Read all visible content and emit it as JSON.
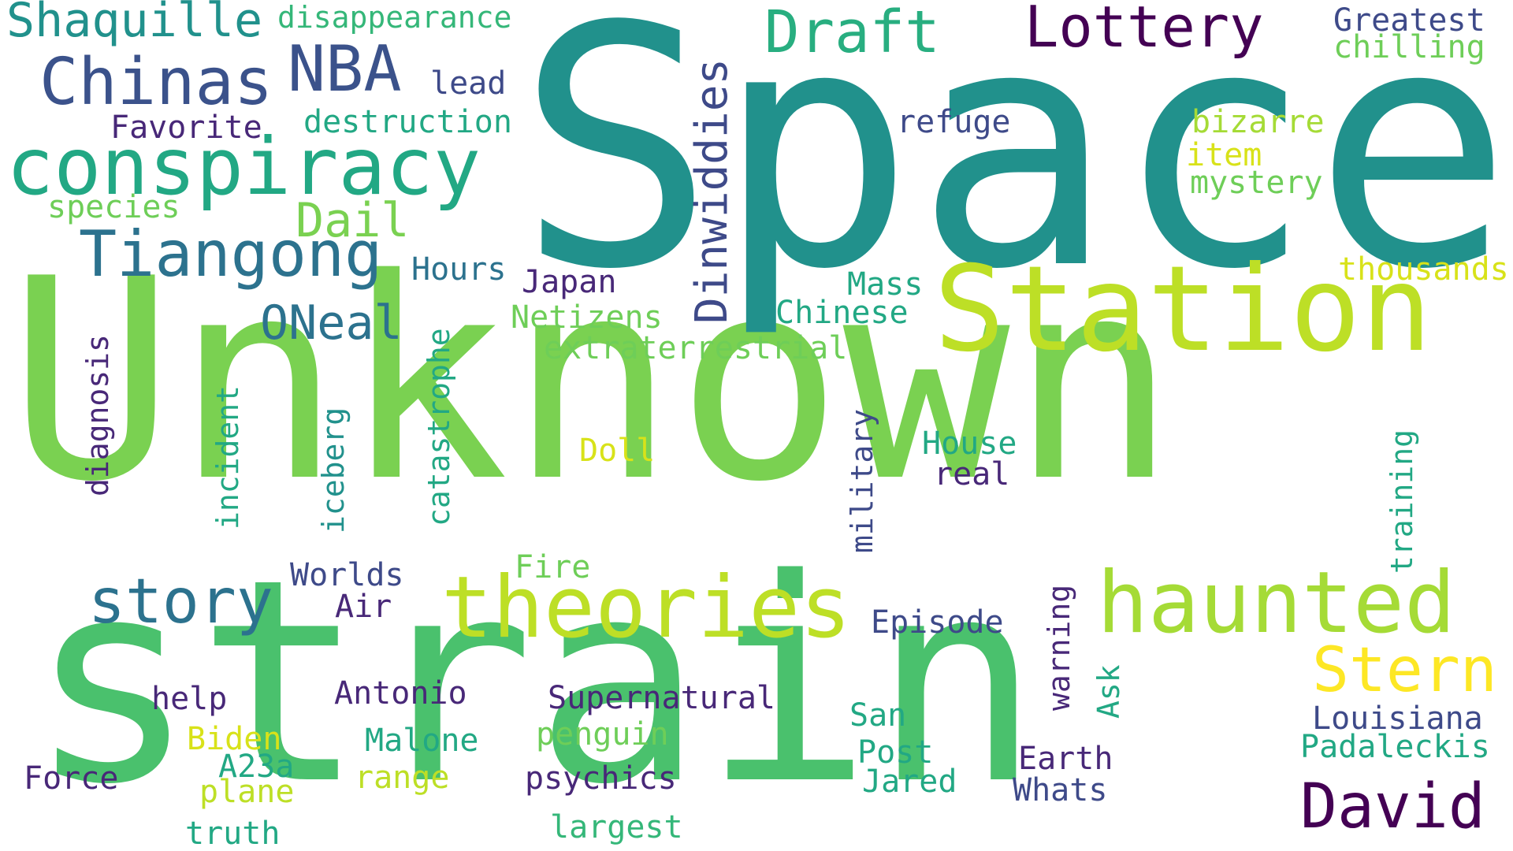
{
  "palette": {
    "c1": "#440154",
    "c2": "#3b528b",
    "c3": "#2c728e",
    "c4": "#21918c",
    "c5": "#28ae80",
    "c6": "#5ec962",
    "c7": "#7ad151",
    "c8": "#addc30",
    "c9": "#fde725",
    "c10": "#c8e020",
    "c11": "#482878",
    "c12": "#3e4a89",
    "c13": "#35b779"
  },
  "words": {
    "unknown": "Unknown",
    "space": "Space",
    "strain": "strain",
    "station": "Station",
    "theories": "theories",
    "haunted": "haunted",
    "conspiracy": "conspiracy",
    "tiangong": "Tiangong",
    "chinas": "Chinas",
    "shaquille": "Shaquille",
    "disappearance": "disappearance",
    "draft": "Draft",
    "lottery": "Lottery",
    "greatest": "Greatest",
    "chilling": "chilling",
    "nba": "NBA",
    "lead": "lead",
    "destruction": "destruction",
    "favorite": "Favorite",
    "refuge": "refuge",
    "bizarre": "bizarre",
    "item": "item",
    "mystery": "mystery",
    "species": "species",
    "dail": "Dail",
    "hours": "Hours",
    "japan": "Japan",
    "mass": "Mass",
    "thousands": "thousands",
    "oneal": "ONeal",
    "netizens": "Netizens",
    "chinese": "Chinese",
    "extraterrestrial": "extraterrestrial",
    "dinwiddies": "Dinwiddies",
    "diagnosis": "diagnosis",
    "incident": "incident",
    "iceberg": "iceberg",
    "catastrophe": "catastrophe",
    "military": "military",
    "house": "House",
    "real": "real",
    "doll": "Doll",
    "training": "training",
    "story": "story",
    "worlds": "Worlds",
    "fire": "Fire",
    "air": "Air",
    "episode": "Episode",
    "warning": "warning",
    "stern": "Stern",
    "help": "help",
    "antonio": "Antonio",
    "supernatural": "Supernatural",
    "ask": "Ask",
    "san": "San",
    "louisiana": "Louisiana",
    "biden": "Biden",
    "malone": "Malone",
    "penguin": "penguin",
    "post": "Post",
    "padaleckis": "Padaleckis",
    "a23a": "A23a",
    "earth": "Earth",
    "force": "Force",
    "range": "range",
    "psychics": "psychics",
    "jared": "Jared",
    "whats": "Whats",
    "david": "David",
    "plane": "plane",
    "truth": "truth",
    "largest": "largest"
  }
}
